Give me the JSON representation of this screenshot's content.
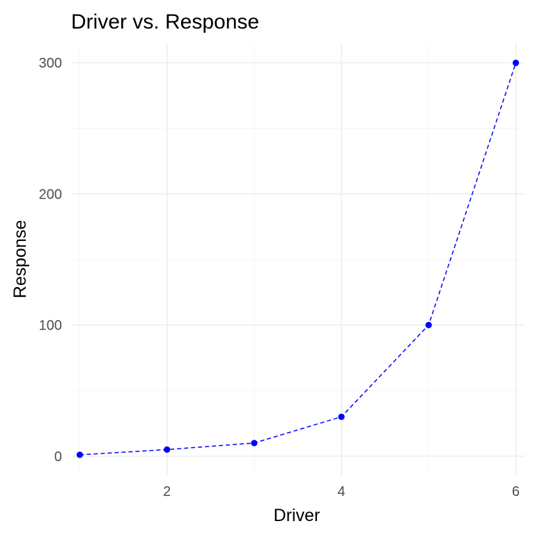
{
  "chart_data": {
    "type": "line",
    "title": "Driver vs. Response",
    "xlabel": "Driver",
    "ylabel": "Response",
    "x": [
      1,
      2,
      3,
      4,
      5,
      6
    ],
    "series": [
      {
        "values": [
          1,
          5,
          10,
          30,
          100,
          300
        ]
      }
    ],
    "xlim": [
      0.9,
      6.1
    ],
    "ylim": [
      -15,
      315
    ],
    "xticks": [
      2,
      4,
      6
    ],
    "xtick_labels": [
      "2",
      "4",
      "6"
    ],
    "yticks": [
      0,
      100,
      200,
      300
    ],
    "ytick_labels": [
      "0",
      "100",
      "200",
      "300"
    ],
    "line_style": "dashed",
    "markers": true,
    "grid": true,
    "legend": "none",
    "colors": {
      "series": "#0000ff",
      "grid": "#ebebeb",
      "tick_text": "#4d4d4d"
    }
  }
}
